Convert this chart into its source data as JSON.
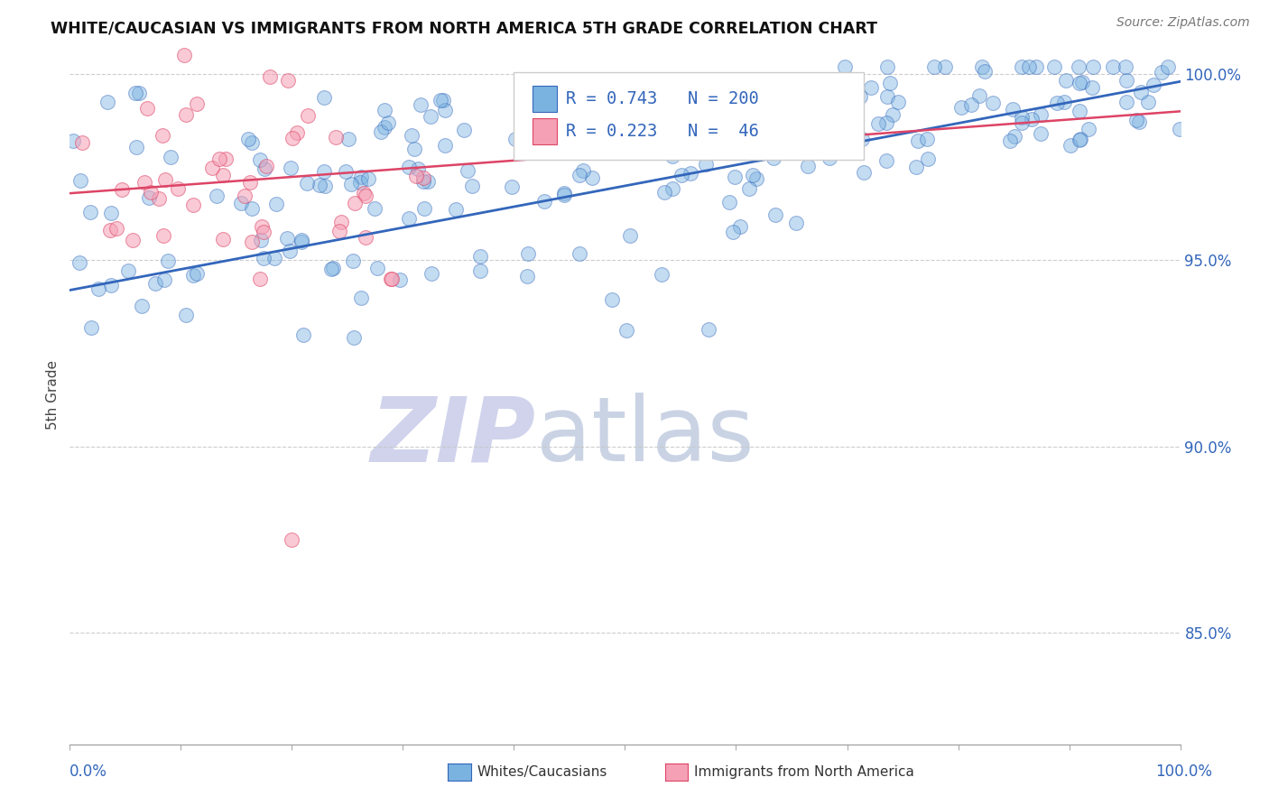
{
  "title": "WHITE/CAUCASIAN VS IMMIGRANTS FROM NORTH AMERICA 5TH GRADE CORRELATION CHART",
  "source": "Source: ZipAtlas.com",
  "ylabel": "5th Grade",
  "blue_R": 0.743,
  "blue_N": 200,
  "pink_R": 0.223,
  "pink_N": 46,
  "blue_color": "#7ab3e0",
  "pink_color": "#f5a0b5",
  "blue_line_color": "#3366bb",
  "pink_line_color": "#dd4466",
  "legend_label_blue": "Whites/Caucasians",
  "legend_label_pink": "Immigrants from North America",
  "xlim": [
    0.0,
    1.0
  ],
  "ylim": [
    0.82,
    1.008
  ],
  "yticks": [
    0.85,
    0.9,
    0.95,
    1.0
  ],
  "ytick_labels": [
    "85.0%",
    "90.0%",
    "95.0%",
    "100.0%"
  ],
  "blue_trend": [
    0.0,
    0.942,
    1.0,
    0.998
  ],
  "pink_trend": [
    0.0,
    0.968,
    1.0,
    0.99
  ],
  "watermark_zip_color": "#c8cce8",
  "watermark_atlas_color": "#c0cce0"
}
